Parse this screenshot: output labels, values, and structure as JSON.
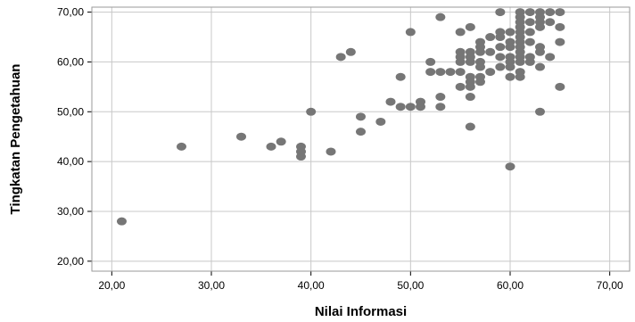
{
  "chart_data": {
    "type": "scatter",
    "title": "",
    "xlabel": "Nilai Informasi",
    "ylabel": "Tingkatan Pengetahuan",
    "xlim": [
      18,
      72
    ],
    "ylim": [
      18,
      71
    ],
    "grid": true,
    "x_ticks": [
      20,
      30,
      40,
      50,
      60,
      70
    ],
    "y_ticks": [
      20,
      30,
      40,
      50,
      60,
      70
    ],
    "x_tick_labels": [
      "20,00",
      "30,00",
      "40,00",
      "50,00",
      "60,00",
      "70,00"
    ],
    "y_tick_labels": [
      "20,00",
      "30,00",
      "40,00",
      "50,00",
      "60,00",
      "70,00"
    ],
    "colors": {
      "marker": "#767676",
      "grid": "#c8c8c8",
      "frame": "#9a9a9a"
    },
    "points": [
      [
        21,
        28
      ],
      [
        27,
        43
      ],
      [
        33,
        45
      ],
      [
        36,
        43
      ],
      [
        37,
        44
      ],
      [
        39,
        43
      ],
      [
        39,
        42
      ],
      [
        39,
        41
      ],
      [
        40,
        50
      ],
      [
        42,
        42
      ],
      [
        43,
        61
      ],
      [
        44,
        62
      ],
      [
        45,
        49
      ],
      [
        45,
        46
      ],
      [
        47,
        48
      ],
      [
        48,
        52
      ],
      [
        49,
        57
      ],
      [
        49,
        51
      ],
      [
        50,
        51
      ],
      [
        50,
        66
      ],
      [
        51,
        52
      ],
      [
        51,
        51
      ],
      [
        52,
        60
      ],
      [
        52,
        58
      ],
      [
        53,
        69
      ],
      [
        53,
        58
      ],
      [
        53,
        53
      ],
      [
        53,
        51
      ],
      [
        54,
        58
      ],
      [
        55,
        66
      ],
      [
        55,
        62
      ],
      [
        55,
        61
      ],
      [
        55,
        60
      ],
      [
        55,
        58
      ],
      [
        55,
        55
      ],
      [
        56,
        67
      ],
      [
        56,
        62
      ],
      [
        56,
        61
      ],
      [
        56,
        60
      ],
      [
        56,
        57
      ],
      [
        56,
        56
      ],
      [
        56,
        55
      ],
      [
        56,
        53
      ],
      [
        56,
        47
      ],
      [
        57,
        64
      ],
      [
        57,
        63
      ],
      [
        57,
        62
      ],
      [
        57,
        60
      ],
      [
        57,
        59
      ],
      [
        57,
        57
      ],
      [
        57,
        56
      ],
      [
        58,
        65
      ],
      [
        58,
        62
      ],
      [
        58,
        58
      ],
      [
        59,
        70
      ],
      [
        59,
        66
      ],
      [
        59,
        65
      ],
      [
        59,
        63
      ],
      [
        59,
        61
      ],
      [
        59,
        59
      ],
      [
        60,
        66
      ],
      [
        60,
        64
      ],
      [
        60,
        63
      ],
      [
        60,
        61
      ],
      [
        60,
        60
      ],
      [
        60,
        59
      ],
      [
        60,
        57
      ],
      [
        60,
        39
      ],
      [
        61,
        70
      ],
      [
        61,
        69
      ],
      [
        61,
        68
      ],
      [
        61,
        67
      ],
      [
        61,
        66
      ],
      [
        61,
        65
      ],
      [
        61,
        64
      ],
      [
        61,
        63
      ],
      [
        61,
        62
      ],
      [
        61,
        61
      ],
      [
        61,
        60
      ],
      [
        61,
        58
      ],
      [
        61,
        57
      ],
      [
        62,
        70
      ],
      [
        62,
        68
      ],
      [
        62,
        66
      ],
      [
        62,
        64
      ],
      [
        62,
        61
      ],
      [
        62,
        60
      ],
      [
        63,
        70
      ],
      [
        63,
        69
      ],
      [
        63,
        68
      ],
      [
        63,
        67
      ],
      [
        63,
        63
      ],
      [
        63,
        62
      ],
      [
        63,
        59
      ],
      [
        63,
        50
      ],
      [
        64,
        70
      ],
      [
        64,
        68
      ],
      [
        64,
        61
      ],
      [
        65,
        70
      ],
      [
        65,
        67
      ],
      [
        65,
        64
      ],
      [
        65,
        55
      ]
    ]
  }
}
